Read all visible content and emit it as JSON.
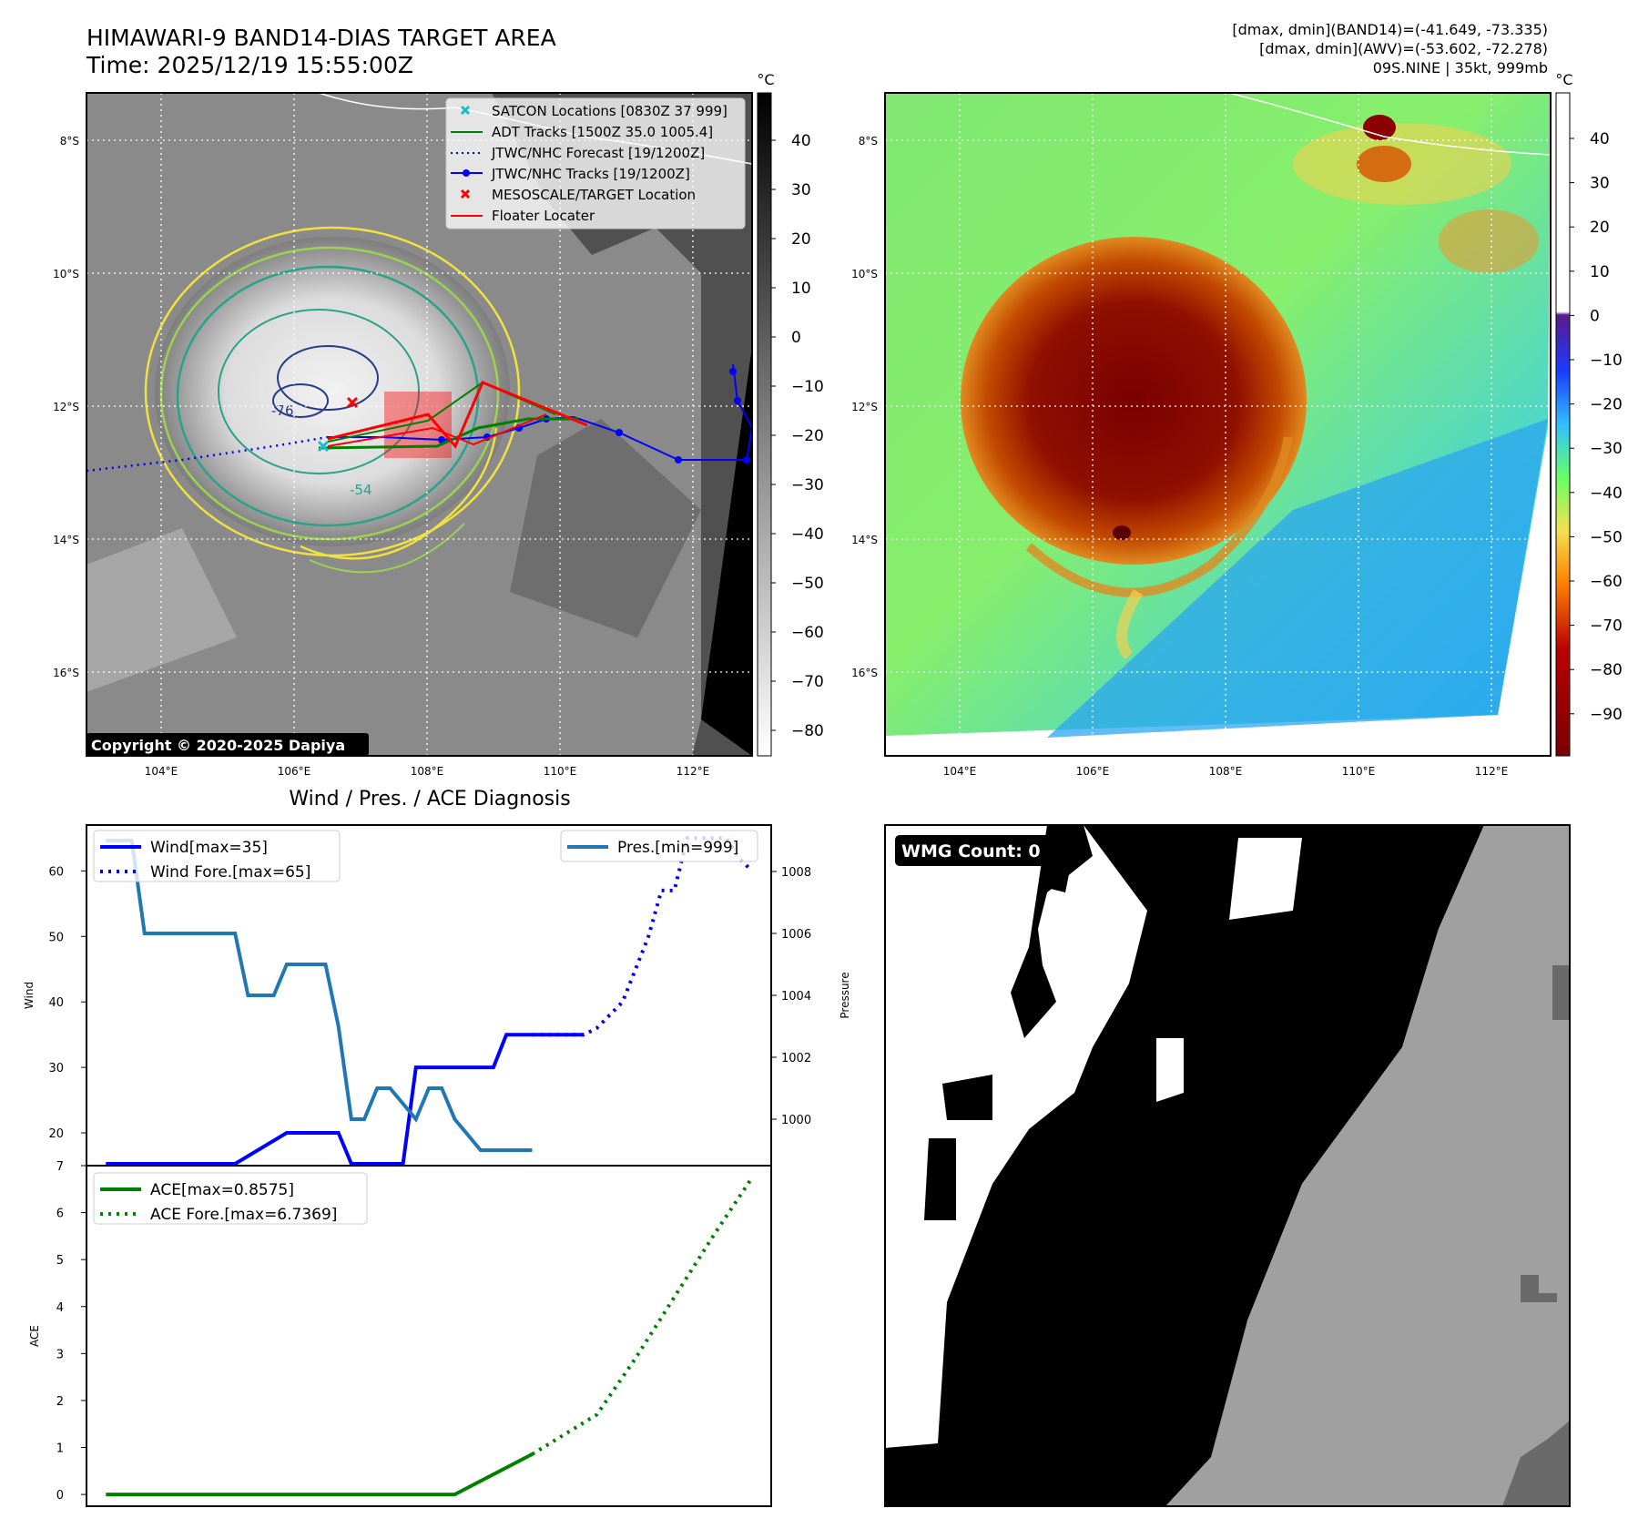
{
  "header": {
    "title": "HIMAWARI-9 BAND14-DIAS TARGET AREA",
    "time": "Time: 2025/12/19 15:55:00Z",
    "dmax_band14": "[dmax, dmin](BAND14)=(-41.649, -73.335)",
    "dmax_awv": "[dmax, dmin](AWV)=(-53.602, -72.278)",
    "storm": "09S.NINE | 35kt, 999mb"
  },
  "map": {
    "lat_labels": [
      "8°S",
      "10°S",
      "12°S",
      "14°S",
      "16°S"
    ],
    "lon_labels": [
      "104°E",
      "106°E",
      "108°E",
      "110°E",
      "112°E"
    ],
    "copyright": "Copyright © 2020-2025 Dapiya",
    "contour_labels": [
      "-76",
      "-54"
    ],
    "legend": [
      {
        "label": "SATCON Locations [0830Z 37 999]",
        "color": "#17becf"
      },
      {
        "label": "ADT Tracks [1500Z 35.0 1005.4]",
        "color": "#008000"
      },
      {
        "label": "JTWC/NHC Forecast [19/1200Z]",
        "color": "#0000ff"
      },
      {
        "label": "JTWC/NHC Tracks [19/1200Z]",
        "color": "#0000ff"
      },
      {
        "label": "MESOSCALE/TARGET Location",
        "color": "#ff0000"
      },
      {
        "label": "Floater Locater",
        "color": "#ff0000"
      }
    ]
  },
  "colorbars": {
    "unit": "°C",
    "gray_ticks": [
      "40",
      "30",
      "20",
      "10",
      "0",
      "−10",
      "−20",
      "−30",
      "−40",
      "−50",
      "−60",
      "−70",
      "−80"
    ],
    "color_ticks": [
      "40",
      "30",
      "20",
      "10",
      "0",
      "−10",
      "−20",
      "−30",
      "−40",
      "−50",
      "−60",
      "−70",
      "−80",
      "−90"
    ]
  },
  "wmg": {
    "label": "WMG Count: 0"
  },
  "chart_data": [
    {
      "type": "line",
      "title": "Wind / Pres. / ACE Diagnosis",
      "ylabel": "Wind",
      "y2label": "Pressure",
      "ylim": [
        15,
        67
      ],
      "y2lim": [
        998.5,
        1009.5
      ],
      "yticks": [
        20,
        30,
        40,
        50,
        60
      ],
      "y2ticks": [
        1000,
        1002,
        1004,
        1006,
        1008
      ],
      "series": [
        {
          "name": "Wind[max=35]",
          "axis": "left",
          "style": "solid",
          "color": "#0000ff",
          "x": [
            0,
            7,
            10,
            14,
            15,
            18,
            19,
            20,
            23,
            24,
            25,
            29,
            30,
            31,
            32,
            33,
            37
          ],
          "values": [
            15,
            15,
            15,
            20,
            20,
            20,
            15,
            15,
            15,
            30,
            30,
            30,
            30,
            35,
            35,
            35,
            35
          ]
        },
        {
          "name": "Wind Fore.[max=65]",
          "axis": "left",
          "style": "dotted",
          "color": "#0000ff",
          "x": [
            33,
            37,
            38,
            40,
            42,
            43,
            44,
            45,
            46,
            47,
            48,
            49,
            50
          ],
          "values": [
            35,
            35,
            36,
            40,
            50,
            57,
            57,
            65,
            65,
            65,
            65,
            62,
            60
          ]
        },
        {
          "name": "Pres.[min=999]",
          "axis": "right",
          "style": "solid",
          "color": "#1f77b4",
          "x": [
            0,
            2,
            3,
            10,
            11,
            13,
            14,
            17,
            18,
            19,
            20,
            21,
            22,
            24,
            25,
            26,
            27,
            29,
            30,
            32,
            33
          ],
          "values": [
            1009,
            1009,
            1006,
            1006,
            1004,
            1004,
            1005,
            1005,
            1003,
            1000,
            1000,
            1001,
            1001,
            1000,
            1001,
            1001,
            1000,
            999,
            999,
            999,
            999
          ]
        }
      ]
    },
    {
      "type": "line",
      "ylabel": "ACE",
      "ylim": [
        -0.25,
        7
      ],
      "yticks": [
        0,
        1,
        2,
        3,
        4,
        5,
        6,
        7
      ],
      "series": [
        {
          "name": "ACE[max=0.8575]",
          "style": "solid",
          "color": "#008000",
          "x": [
            0,
            27,
            33
          ],
          "values": [
            0,
            0,
            0.8575
          ]
        },
        {
          "name": "ACE Fore.[max=6.7369]",
          "style": "dotted",
          "color": "#008000",
          "x": [
            33,
            38,
            41,
            44,
            47,
            50
          ],
          "values": [
            0.8575,
            1.7,
            2.9,
            4.2,
            5.5,
            6.7369
          ]
        }
      ]
    }
  ]
}
